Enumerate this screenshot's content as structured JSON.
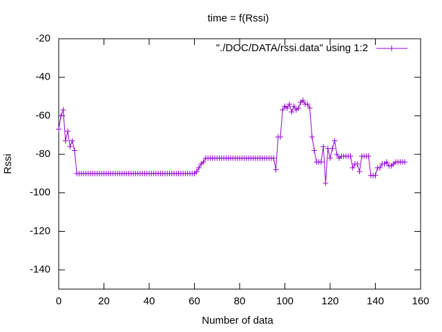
{
  "chart_data": {
    "type": "line",
    "title": "time = f(Rssi)",
    "x_label": "Number of data",
    "y_label": "Rssi",
    "x": [
      0,
      1,
      2,
      3,
      4,
      5,
      6,
      7,
      8,
      9,
      10,
      11,
      12,
      13,
      14,
      15,
      16,
      17,
      18,
      19,
      20,
      21,
      22,
      23,
      24,
      25,
      26,
      27,
      28,
      29,
      30,
      31,
      32,
      33,
      34,
      35,
      36,
      37,
      38,
      39,
      40,
      41,
      42,
      43,
      44,
      45,
      46,
      47,
      48,
      49,
      50,
      51,
      52,
      53,
      54,
      55,
      56,
      57,
      58,
      59,
      60,
      61,
      62,
      63,
      64,
      65,
      66,
      67,
      68,
      69,
      70,
      71,
      72,
      73,
      74,
      75,
      76,
      77,
      78,
      79,
      80,
      81,
      82,
      83,
      84,
      85,
      86,
      87,
      88,
      89,
      90,
      91,
      92,
      93,
      94,
      95,
      96,
      97,
      98,
      99,
      100,
      101,
      102,
      103,
      104,
      105,
      106,
      107,
      108,
      109,
      110,
      111,
      112,
      113,
      114,
      115,
      116,
      117,
      118,
      119,
      120,
      121,
      122,
      123,
      124,
      125,
      126,
      127,
      128,
      129,
      130,
      131,
      132,
      133,
      134,
      135,
      136,
      137,
      138,
      139,
      140,
      141,
      142,
      143,
      144,
      145,
      146,
      147,
      148,
      149,
      150,
      151,
      152,
      153
    ],
    "series": [
      {
        "name": "\"./DOC/DATA/rssi.data\" using 1:2",
        "color": "#9400d3",
        "values": [
          -67,
          -60,
          -57,
          -73,
          -68,
          -76,
          -73,
          -78,
          -90,
          -90,
          -90,
          -90,
          -90,
          -90,
          -90,
          -90,
          -90,
          -90,
          -90,
          -90,
          -90,
          -90,
          -90,
          -90,
          -90,
          -90,
          -90,
          -90,
          -90,
          -90,
          -90,
          -90,
          -90,
          -90,
          -90,
          -90,
          -90,
          -90,
          -90,
          -90,
          -90,
          -90,
          -90,
          -90,
          -90,
          -90,
          -90,
          -90,
          -90,
          -90,
          -90,
          -90,
          -90,
          -90,
          -90,
          -90,
          -90,
          -90,
          -90,
          -90,
          -90,
          -89,
          -87,
          -85,
          -84,
          -82,
          -82,
          -82,
          -82,
          -82,
          -82,
          -82,
          -82,
          -82,
          -82,
          -82,
          -82,
          -82,
          -82,
          -82,
          -82,
          -82,
          -82,
          -82,
          -82,
          -82,
          -82,
          -82,
          -82,
          -82,
          -82,
          -82,
          -82,
          -82,
          -82,
          -82,
          -88,
          -71,
          -71,
          -57,
          -55,
          -56,
          -54,
          -58,
          -55,
          -57,
          -56,
          -53,
          -52,
          -54,
          -54,
          -56,
          -71,
          -78,
          -84,
          -84,
          -84,
          -76,
          -95,
          -77,
          -82,
          -77,
          -73,
          -80,
          -82,
          -81,
          -81,
          -81,
          -81,
          -81,
          -87,
          -85,
          -85,
          -89,
          -81,
          -81,
          -81,
          -81,
          -91,
          -91,
          -91,
          -87,
          -87,
          -85,
          -85,
          -84,
          -86,
          -86,
          -85,
          -84,
          -84,
          -84,
          -84,
          -84
        ]
      }
    ],
    "xlim": [
      0,
      160
    ],
    "xticks": [
      0,
      20,
      40,
      60,
      80,
      100,
      120,
      140,
      160
    ],
    "ylim": [
      -150,
      -20
    ],
    "yticks": [
      -140,
      -120,
      -100,
      -80,
      -60,
      -40,
      -20
    ],
    "legend": "top-right"
  }
}
